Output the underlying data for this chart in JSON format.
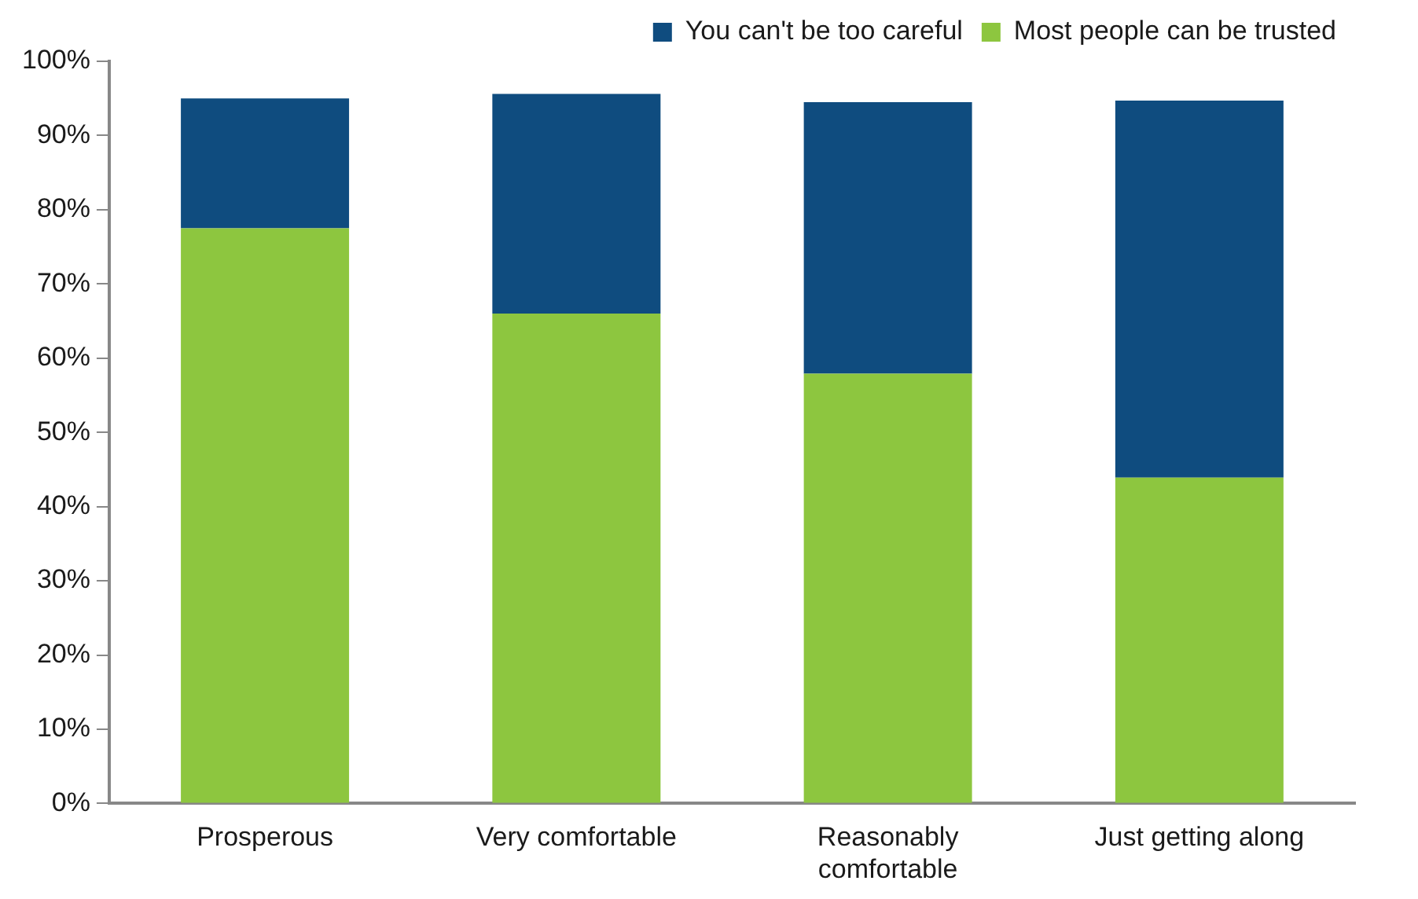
{
  "chart_data": {
    "type": "bar",
    "stacked": true,
    "categories": [
      "Prosperous",
      "Very comfortable",
      "Reasonably comfortable",
      "Just getting along"
    ],
    "series": [
      {
        "name": "Most people can be trusted",
        "color": "#8dc63f",
        "values": [
          77.5,
          66.0,
          57.9,
          43.9
        ]
      },
      {
        "name": "You can't be too careful",
        "color": "#0f4c7f",
        "values": [
          17.5,
          29.6,
          36.6,
          50.8
        ]
      }
    ],
    "ylim": [
      0,
      100
    ],
    "yticks": [
      {
        "value": 0,
        "label": "0%"
      },
      {
        "value": 10,
        "label": "10%"
      },
      {
        "value": 20,
        "label": "20%"
      },
      {
        "value": 30,
        "label": "30%"
      },
      {
        "value": 40,
        "label": "40%"
      },
      {
        "value": 50,
        "label": "50%"
      },
      {
        "value": 60,
        "label": "60%"
      },
      {
        "value": 70,
        "label": "70%"
      },
      {
        "value": 80,
        "label": "80%"
      },
      {
        "value": 90,
        "label": "90%"
      },
      {
        "value": 100,
        "label": "100%"
      }
    ],
    "grid": false,
    "legend": "top right"
  }
}
